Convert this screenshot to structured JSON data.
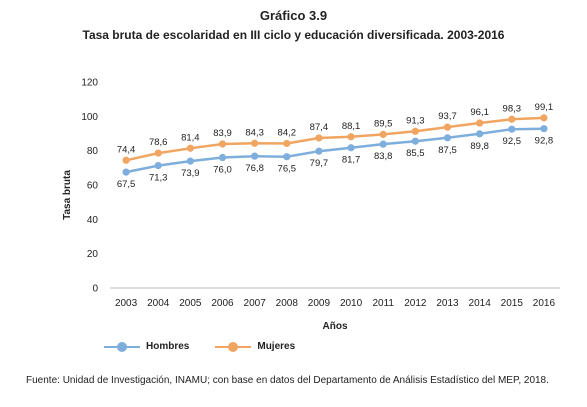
{
  "header": {
    "title": "Gráfico 3.9",
    "subtitle": "Tasa bruta de escolaridad en III ciclo y educación diversificada. 2003-2016"
  },
  "source": "Fuente: Unidad de Investigación, INAMU; con base en datos del Departamento de Análisis Estadístico del MEP, 2018.",
  "chart_data": {
    "type": "line",
    "title": "Gráfico 3.9",
    "subtitle": "Tasa bruta de escolaridad en III ciclo y educación diversificada. 2003-2016",
    "xlabel": "Años",
    "ylabel": "Tasa bruta",
    "ylim": [
      0,
      120
    ],
    "yticks": [
      0,
      20,
      40,
      60,
      80,
      100,
      120
    ],
    "grid": false,
    "legend_position": "bottom-left",
    "categories": [
      "2003",
      "2004",
      "2005",
      "2006",
      "2007",
      "2008",
      "2009",
      "2010",
      "2011",
      "2012",
      "2013",
      "2014",
      "2015",
      "2016"
    ],
    "series": [
      {
        "name": "Hombres",
        "color": "#7eaedb",
        "values": [
          67.5,
          71.3,
          73.9,
          76.0,
          76.8,
          76.5,
          79.7,
          81.7,
          83.8,
          85.5,
          87.5,
          89.8,
          92.5,
          92.8
        ],
        "labels": [
          "67,5",
          "71,3",
          "73,9",
          "76,0",
          "76,8",
          "76,5",
          "79,7",
          "81,7",
          "83,8",
          "85,5",
          "87,5",
          "89,8",
          "92,5",
          "92,8"
        ]
      },
      {
        "name": "Mujeres",
        "color": "#f0a560",
        "values": [
          74.4,
          78.6,
          81.4,
          83.9,
          84.3,
          84.2,
          87.4,
          88.1,
          89.5,
          91.3,
          93.7,
          96.1,
          98.3,
          99.1
        ],
        "labels": [
          "74,4",
          "78,6",
          "81,4",
          "83,9",
          "84,3",
          "84,2",
          "87,4",
          "88,1",
          "89,5",
          "91,3",
          "93,7",
          "96,1",
          "98,3",
          "99,1"
        ]
      }
    ]
  }
}
